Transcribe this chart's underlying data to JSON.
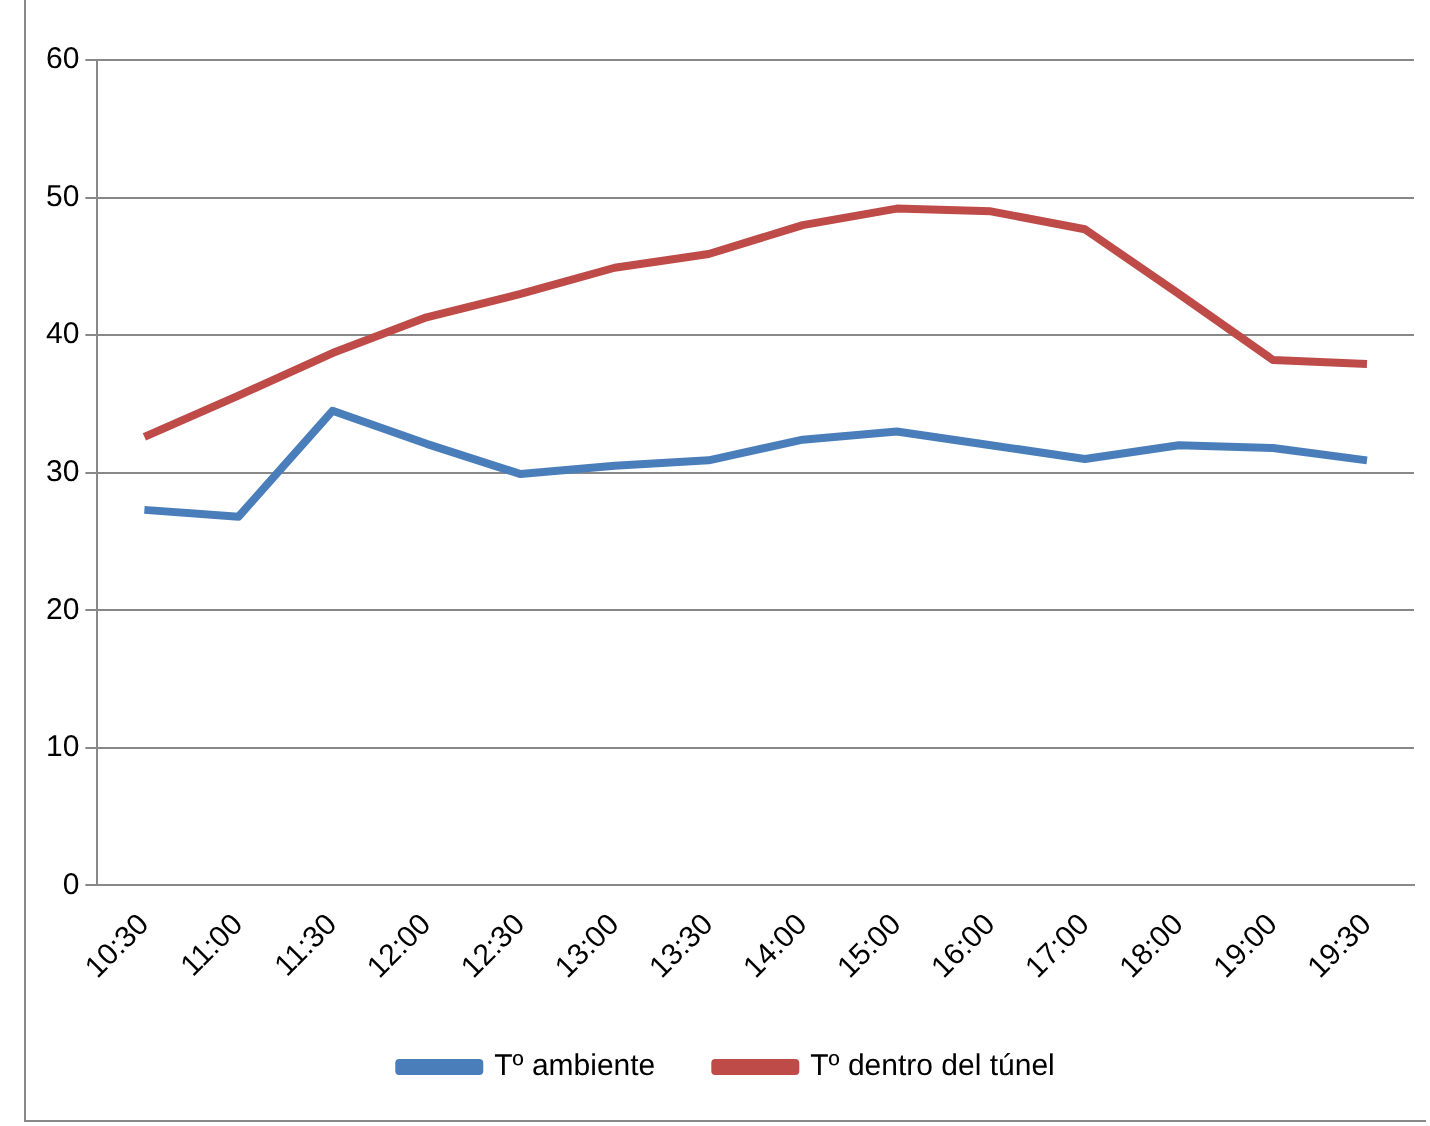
{
  "chart_data": {
    "type": "line",
    "categories": [
      "10:30",
      "11:00",
      "11:30",
      "12:00",
      "12:30",
      "13:00",
      "13:30",
      "14:00",
      "15:00",
      "16:00",
      "17:00",
      "18:00",
      "19:00",
      "19:30"
    ],
    "series": [
      {
        "name": "Tº ambiente",
        "color": "#4a7ebb",
        "values": [
          27.3,
          26.8,
          34.5,
          32.1,
          29.9,
          30.5,
          30.9,
          32.4,
          33.0,
          32.0,
          31.0,
          32.0,
          31.8,
          30.9
        ]
      },
      {
        "name": "Tº dentro del túnel",
        "color": "#be4b48",
        "values": [
          32.6,
          35.6,
          38.7,
          41.3,
          43.0,
          44.9,
          45.9,
          48.0,
          49.2,
          49.0,
          47.7,
          43.0,
          38.2,
          37.9
        ]
      }
    ],
    "ylim": [
      0,
      60
    ],
    "yticks": [
      0,
      10,
      20,
      30,
      40,
      50,
      60
    ],
    "grid": "y",
    "legend": "bottom",
    "marker": "none",
    "line_style": "solid"
  }
}
